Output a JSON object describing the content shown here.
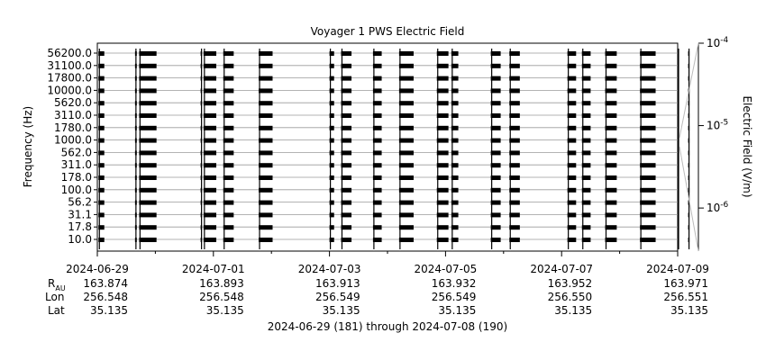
{
  "chart_data": {
    "type": "heatmap",
    "title": "Voyager 1 PWS Electric Field",
    "ylabel": "Frequency (Hz)",
    "colorbar_label": "Electric Field (V/m)",
    "colorbar_ticks": [
      {
        "base": "10",
        "exp": "-4",
        "value": 0.0001
      },
      {
        "base": "10",
        "exp": "-5",
        "value": 1e-05
      },
      {
        "base": "10",
        "exp": "-6",
        "value": 1e-06
      }
    ],
    "colorbar_range": [
      3e-07,
      0.0001
    ],
    "frequency_channels": [
      "56200.0",
      "31100.0",
      "17800.0",
      "10000.0",
      "5620.0",
      "3110.0",
      "1780.0",
      "1000.0",
      "562.0",
      "311.0",
      "178.0",
      "100.0",
      "56.2",
      "31.1",
      "17.8",
      "10.0"
    ],
    "x_ticks": [
      "2024-06-29",
      "2024-07-01",
      "2024-07-03",
      "2024-07-05",
      "2024-07-07",
      "2024-07-09"
    ],
    "x_range_days": [
      0,
      10
    ],
    "ephemeris_labels": {
      "r": "R",
      "r_sub": "AU",
      "lon": "Lon",
      "lat": "Lat"
    },
    "ephemeris": [
      {
        "date": "2024-06-29",
        "r": "163.874",
        "lon": "256.548",
        "lat": "35.135"
      },
      {
        "date": "2024-07-01",
        "r": "163.893",
        "lon": "256.548",
        "lat": "35.135"
      },
      {
        "date": "2024-07-03",
        "r": "163.913",
        "lon": "256.549",
        "lat": "35.135"
      },
      {
        "date": "2024-07-05",
        "r": "163.932",
        "lon": "256.549",
        "lat": "35.135"
      },
      {
        "date": "2024-07-07",
        "r": "163.952",
        "lon": "256.550",
        "lat": "35.135"
      },
      {
        "date": "2024-07-09",
        "r": "163.971",
        "lon": "256.551",
        "lat": "35.135"
      }
    ],
    "xlabel": "2024-06-29 (181) through 2024-07-08 (190)",
    "data_segments_days": [
      [
        0.02,
        0.12
      ],
      [
        0.65,
        0.68
      ],
      [
        0.72,
        1.02
      ],
      [
        1.78,
        1.8
      ],
      [
        1.83,
        2.05
      ],
      [
        2.17,
        2.35
      ],
      [
        2.78,
        3.02
      ],
      [
        4.0,
        4.08
      ],
      [
        4.2,
        4.38
      ],
      [
        4.75,
        4.9
      ],
      [
        5.2,
        5.45
      ],
      [
        5.85,
        6.05
      ],
      [
        6.1,
        6.22
      ],
      [
        6.78,
        6.95
      ],
      [
        7.1,
        7.28
      ],
      [
        8.1,
        8.25
      ],
      [
        8.35,
        8.5
      ],
      [
        8.75,
        8.95
      ],
      [
        9.35,
        9.62
      ],
      [
        10.0,
        10.02
      ],
      [
        10.18,
        10.36
      ]
    ]
  }
}
